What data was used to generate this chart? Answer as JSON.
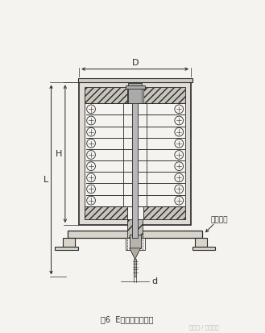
{
  "title": "图6  E型吊架外形尺寸",
  "watermark": "头条号 / 电厂运行",
  "label_D": "D",
  "label_H": "H",
  "label_L": "L",
  "label_d": "d",
  "label_anzhuang": "安装底板",
  "bg_color": "#f5f3ef",
  "line_color": "#2a2a2a",
  "fig_width": 3.29,
  "fig_height": 4.13,
  "dpi": 100
}
